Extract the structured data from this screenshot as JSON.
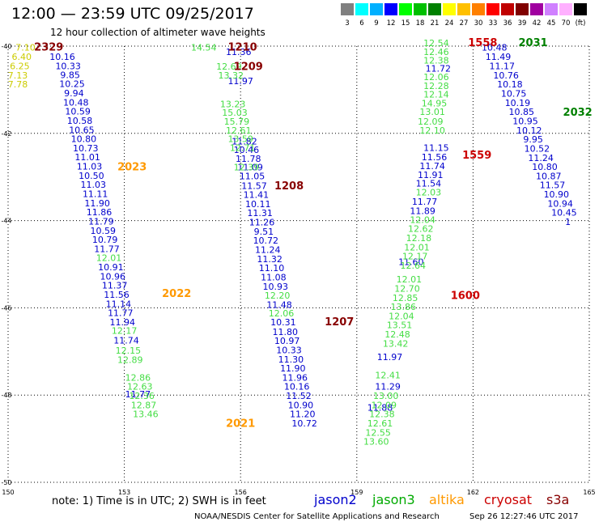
{
  "header": {
    "title": "12:00 — 23:59 UTC 09/25/2017",
    "subtitle": "12 hour collection of altimeter wave heights"
  },
  "colorscale": {
    "labels": [
      "3",
      "6",
      "9",
      "12",
      "15",
      "18",
      "21",
      "24",
      "27",
      "30",
      "33",
      "36",
      "39",
      "42",
      "45",
      "70",
      "(ft)"
    ],
    "colors": [
      "#808080",
      "#00ffff",
      "#00b0ff",
      "#0000ff",
      "#00ff00",
      "#00c000",
      "#008000",
      "#ffff00",
      "#ffc000",
      "#ff8000",
      "#ff0000",
      "#c00000",
      "#800000",
      "#a000a0",
      "#d080ff",
      "#ffb0ff",
      "#000000"
    ]
  },
  "footer": {
    "note": "note: 1) Time is in UTC; 2) SWH is in feet",
    "legend": [
      {
        "name": "jason2",
        "color": "#0000cc"
      },
      {
        "name": "jason3",
        "color": "#00aa00"
      },
      {
        "name": "altika",
        "color": "#ff9900"
      },
      {
        "name": "cryosat",
        "color": "#cc0000"
      },
      {
        "name": "s3a",
        "color": "#880000"
      }
    ],
    "credit": "NOAA/NESDIS Center for Satellite Applications and Research",
    "timestamp": "Sep 26 12:27:46 UTC 2017"
  },
  "chart_data": {
    "type": "scatter",
    "title": "12 hour collection of altimeter wave heights",
    "xlim": [
      150,
      165
    ],
    "ylim": [
      -50,
      -40
    ],
    "xticks": [
      "150",
      "153",
      "156",
      "159",
      "162",
      "165"
    ],
    "yticks": [
      "-40",
      "-42",
      "-44",
      "-46",
      "-48",
      "-50"
    ],
    "grid": true,
    "series": [
      {
        "name": "jason2",
        "color": "#0000cc",
        "points": [
          {
            "x": 151.4,
            "y": -40.32,
            "v": "10.16"
          },
          {
            "x": 151.55,
            "y": -40.53,
            "v": "10.33"
          },
          {
            "x": 151.6,
            "y": -40.73,
            "v": "9.85"
          },
          {
            "x": 151.65,
            "y": -40.94,
            "v": "10.25"
          },
          {
            "x": 151.7,
            "y": -41.15,
            "v": "9.94"
          },
          {
            "x": 151.75,
            "y": -41.36,
            "v": "10.48"
          },
          {
            "x": 151.8,
            "y": -41.57,
            "v": "10.59"
          },
          {
            "x": 151.85,
            "y": -41.78,
            "v": "10.58"
          },
          {
            "x": 151.9,
            "y": -41.99,
            "v": "10.65"
          },
          {
            "x": 151.95,
            "y": -42.2,
            "v": "10.80"
          },
          {
            "x": 152.0,
            "y": -42.41,
            "v": "10.73"
          },
          {
            "x": 152.05,
            "y": -42.62,
            "v": "11.01"
          },
          {
            "x": 152.1,
            "y": -42.83,
            "v": "11.03"
          },
          {
            "x": 152.15,
            "y": -43.04,
            "v": "10.50"
          },
          {
            "x": 152.2,
            "y": -43.25,
            "v": "11.03"
          },
          {
            "x": 152.25,
            "y": -43.46,
            "v": "11.11"
          },
          {
            "x": 152.3,
            "y": -43.67,
            "v": "11.90"
          },
          {
            "x": 152.35,
            "y": -43.88,
            "v": "11.86"
          },
          {
            "x": 152.4,
            "y": -44.09,
            "v": "11.79"
          },
          {
            "x": 152.45,
            "y": -44.3,
            "v": "10.59"
          },
          {
            "x": 152.5,
            "y": -44.51,
            "v": "10.79"
          },
          {
            "x": 152.55,
            "y": -44.72,
            "v": "11.77"
          },
          {
            "x": 152.65,
            "y": -45.14,
            "v": "10.91"
          },
          {
            "x": 152.7,
            "y": -45.35,
            "v": "10.96"
          },
          {
            "x": 152.75,
            "y": -45.56,
            "v": "11.37"
          },
          {
            "x": 152.8,
            "y": -45.77,
            "v": "11.56"
          },
          {
            "x": 152.85,
            "y": -45.98,
            "v": "11.14"
          },
          {
            "x": 152.9,
            "y": -46.19,
            "v": "11.77"
          },
          {
            "x": 152.95,
            "y": -46.4,
            "v": "11.94"
          },
          {
            "x": 153.05,
            "y": -46.82,
            "v": "11.74"
          },
          {
            "x": 153.35,
            "y": -48.05,
            "v": "11.77"
          },
          {
            "x": 155.95,
            "y": -40.2,
            "v": "11.36"
          },
          {
            "x": 156.0,
            "y": -40.87,
            "v": "11.97"
          },
          {
            "x": 156.1,
            "y": -42.25,
            "v": "11.82"
          },
          {
            "x": 156.15,
            "y": -42.45,
            "v": "10.46"
          },
          {
            "x": 156.2,
            "y": -42.65,
            "v": "11.78"
          },
          {
            "x": 156.25,
            "y": -42.85,
            "v": "11.09"
          },
          {
            "x": 156.3,
            "y": -43.05,
            "v": "11.05"
          },
          {
            "x": 156.35,
            "y": -43.27,
            "v": "11.57"
          },
          {
            "x": 156.4,
            "y": -43.48,
            "v": "11.41"
          },
          {
            "x": 156.45,
            "y": -43.69,
            "v": "10.11"
          },
          {
            "x": 156.5,
            "y": -43.9,
            "v": "11.31"
          },
          {
            "x": 156.55,
            "y": -44.11,
            "v": "11.26"
          },
          {
            "x": 156.6,
            "y": -44.32,
            "v": "9.51"
          },
          {
            "x": 156.65,
            "y": -44.53,
            "v": "10.72"
          },
          {
            "x": 156.7,
            "y": -44.74,
            "v": "11.24"
          },
          {
            "x": 156.75,
            "y": -44.95,
            "v": "11.32"
          },
          {
            "x": 156.8,
            "y": -45.16,
            "v": "11.10"
          },
          {
            "x": 156.85,
            "y": -45.37,
            "v": "11.08"
          },
          {
            "x": 156.9,
            "y": -45.58,
            "v": "10.93"
          },
          {
            "x": 157.0,
            "y": -46.0,
            "v": "11.48"
          },
          {
            "x": 157.1,
            "y": -46.4,
            "v": "10.31"
          },
          {
            "x": 157.15,
            "y": -46.62,
            "v": "11.80"
          },
          {
            "x": 157.2,
            "y": -46.83,
            "v": "10.97"
          },
          {
            "x": 157.25,
            "y": -47.04,
            "v": "10.33"
          },
          {
            "x": 157.3,
            "y": -47.25,
            "v": "11.30"
          },
          {
            "x": 157.35,
            "y": -47.46,
            "v": "11.90"
          },
          {
            "x": 157.4,
            "y": -47.67,
            "v": "11.96"
          },
          {
            "x": 157.45,
            "y": -47.88,
            "v": "10.16"
          },
          {
            "x": 157.5,
            "y": -48.09,
            "v": "11.52"
          },
          {
            "x": 157.55,
            "y": -48.3,
            "v": "10.90"
          },
          {
            "x": 157.6,
            "y": -48.51,
            "v": "11.20"
          },
          {
            "x": 157.65,
            "y": -48.72,
            "v": "10.72"
          },
          {
            "x": 161.1,
            "y": -40.58,
            "v": "11.72"
          },
          {
            "x": 161.05,
            "y": -42.4,
            "v": "11.15"
          },
          {
            "x": 161.0,
            "y": -42.62,
            "v": "11.56"
          },
          {
            "x": 160.95,
            "y": -42.82,
            "v": "11.74"
          },
          {
            "x": 160.9,
            "y": -43.02,
            "v": "11.91"
          },
          {
            "x": 160.85,
            "y": -43.22,
            "v": "11.54"
          },
          {
            "x": 160.75,
            "y": -43.64,
            "v": "11.77"
          },
          {
            "x": 160.7,
            "y": -43.85,
            "v": "11.89"
          },
          {
            "x": 160.4,
            "y": -45.02,
            "v": "11.60"
          },
          {
            "x": 159.85,
            "y": -47.2,
            "v": "11.97"
          },
          {
            "x": 159.8,
            "y": -47.88,
            "v": "11.29"
          },
          {
            "x": 159.6,
            "y": -48.36,
            "v": "11.88"
          },
          {
            "x": 162.55,
            "y": -40.1,
            "v": "10.48"
          },
          {
            "x": 162.65,
            "y": -40.32,
            "v": "11.49"
          },
          {
            "x": 162.75,
            "y": -40.53,
            "v": "11.17"
          },
          {
            "x": 162.85,
            "y": -40.74,
            "v": "10.76"
          },
          {
            "x": 162.95,
            "y": -40.95,
            "v": "10.18"
          },
          {
            "x": 163.05,
            "y": -41.16,
            "v": "10.75"
          },
          {
            "x": 163.15,
            "y": -41.37,
            "v": "10.19"
          },
          {
            "x": 163.25,
            "y": -41.58,
            "v": "10.85"
          },
          {
            "x": 163.35,
            "y": -41.79,
            "v": "10.95"
          },
          {
            "x": 163.45,
            "y": -42.0,
            "v": "10.12"
          },
          {
            "x": 163.55,
            "y": -42.21,
            "v": "9.95"
          },
          {
            "x": 163.65,
            "y": -42.42,
            "v": "10.52"
          },
          {
            "x": 163.75,
            "y": -42.63,
            "v": "11.24"
          },
          {
            "x": 163.85,
            "y": -42.84,
            "v": "10.80"
          },
          {
            "x": 163.95,
            "y": -43.05,
            "v": "10.87"
          },
          {
            "x": 164.05,
            "y": -43.26,
            "v": "11.57"
          },
          {
            "x": 164.15,
            "y": -43.47,
            "v": "10.90"
          },
          {
            "x": 164.25,
            "y": -43.68,
            "v": "10.94"
          },
          {
            "x": 164.35,
            "y": -43.89,
            "v": "10.45"
          },
          {
            "x": 164.45,
            "y": -44.1,
            "v": "1"
          }
        ]
      },
      {
        "name": "jason3",
        "color": "#44dd44",
        "points": [
          {
            "x": 155.05,
            "y": -40.1,
            "v": "14.54"
          },
          {
            "x": 155.7,
            "y": -40.54,
            "v": "12.69"
          },
          {
            "x": 155.75,
            "y": -40.74,
            "v": "13.32"
          },
          {
            "x": 155.8,
            "y": -41.4,
            "v": "13.23"
          },
          {
            "x": 155.85,
            "y": -41.6,
            "v": "15.03"
          },
          {
            "x": 155.9,
            "y": -41.8,
            "v": "15.79"
          },
          {
            "x": 155.95,
            "y": -42.0,
            "v": "12.61"
          },
          {
            "x": 156.0,
            "y": -42.2,
            "v": "13.59"
          },
          {
            "x": 156.05,
            "y": -42.4,
            "v": "12.71"
          },
          {
            "x": 156.15,
            "y": -42.85,
            "v": "12.39"
          },
          {
            "x": 152.6,
            "y": -44.93,
            "v": "12.01"
          },
          {
            "x": 153.0,
            "y": -46.6,
            "v": "12.17"
          },
          {
            "x": 153.1,
            "y": -47.05,
            "v": "12.15"
          },
          {
            "x": 153.15,
            "y": -47.26,
            "v": "12.89"
          },
          {
            "x": 153.35,
            "y": -47.67,
            "v": "12.86"
          },
          {
            "x": 153.4,
            "y": -47.88,
            "v": "12.63"
          },
          {
            "x": 153.45,
            "y": -48.09,
            "v": "12.36"
          },
          {
            "x": 153.5,
            "y": -48.3,
            "v": "12.87"
          },
          {
            "x": 153.55,
            "y": -48.51,
            "v": "13.46"
          },
          {
            "x": 156.95,
            "y": -45.79,
            "v": "12.20"
          },
          {
            "x": 157.05,
            "y": -46.2,
            "v": "12.06"
          },
          {
            "x": 161.05,
            "y": -40.0,
            "v": "12.54"
          },
          {
            "x": 161.05,
            "y": -40.2,
            "v": "12.46"
          },
          {
            "x": 161.05,
            "y": -40.4,
            "v": "12.38"
          },
          {
            "x": 161.05,
            "y": -40.78,
            "v": "12.06"
          },
          {
            "x": 161.05,
            "y": -40.98,
            "v": "12.28"
          },
          {
            "x": 161.05,
            "y": -41.18,
            "v": "12.14"
          },
          {
            "x": 161.0,
            "y": -41.38,
            "v": "14.95"
          },
          {
            "x": 160.95,
            "y": -41.58,
            "v": "13.01"
          },
          {
            "x": 160.9,
            "y": -41.8,
            "v": "12.09"
          },
          {
            "x": 160.95,
            "y": -42.0,
            "v": "12.10"
          },
          {
            "x": 160.85,
            "y": -43.42,
            "v": "12.03"
          },
          {
            "x": 160.7,
            "y": -44.05,
            "v": "12.04"
          },
          {
            "x": 160.65,
            "y": -44.26,
            "v": "12.62"
          },
          {
            "x": 160.6,
            "y": -44.47,
            "v": "12.18"
          },
          {
            "x": 160.55,
            "y": -44.68,
            "v": "12.01"
          },
          {
            "x": 160.5,
            "y": -44.89,
            "v": "12.17"
          },
          {
            "x": 160.45,
            "y": -45.1,
            "v": "12.64"
          },
          {
            "x": 160.35,
            "y": -45.42,
            "v": "12.01"
          },
          {
            "x": 160.3,
            "y": -45.63,
            "v": "12.70"
          },
          {
            "x": 160.25,
            "y": -45.84,
            "v": "12.85"
          },
          {
            "x": 160.2,
            "y": -46.05,
            "v": "13.86"
          },
          {
            "x": 160.15,
            "y": -46.26,
            "v": "12.04"
          },
          {
            "x": 160.1,
            "y": -46.47,
            "v": "13.51"
          },
          {
            "x": 160.05,
            "y": -46.68,
            "v": "12.48"
          },
          {
            "x": 160.0,
            "y": -46.89,
            "v": "13.42"
          },
          {
            "x": 159.8,
            "y": -47.62,
            "v": "12.41"
          },
          {
            "x": 159.75,
            "y": -48.09,
            "v": "13.00"
          },
          {
            "x": 159.7,
            "y": -48.3,
            "v": "12.09"
          },
          {
            "x": 159.65,
            "y": -48.51,
            "v": "12.38"
          },
          {
            "x": 159.6,
            "y": -48.72,
            "v": "12.61"
          },
          {
            "x": 159.55,
            "y": -48.93,
            "v": "12.55"
          },
          {
            "x": 159.5,
            "y": -49.14,
            "v": "13.60"
          }
        ]
      },
      {
        "name": "altika",
        "color": "#cccc00",
        "points": [
          {
            "x": 150.45,
            "y": -40.1,
            "v": "7.10"
          },
          {
            "x": 150.35,
            "y": -40.32,
            "v": "6.40"
          },
          {
            "x": 150.3,
            "y": -40.53,
            "v": "6.25"
          },
          {
            "x": 150.25,
            "y": -40.74,
            "v": "7.13"
          },
          {
            "x": 150.25,
            "y": -40.95,
            "v": "7.78"
          }
        ]
      }
    ],
    "tracks": [
      {
        "label": "2329",
        "color": "#880000",
        "x": 151.05,
        "y": -40.1
      },
      {
        "label": "1210",
        "color": "#880000",
        "x": 156.05,
        "y": -40.1
      },
      {
        "label": "1209",
        "color": "#880000",
        "x": 156.2,
        "y": -40.55
      },
      {
        "label": "2023",
        "color": "#ff9900",
        "x": 153.2,
        "y": -42.85
      },
      {
        "label": "1208",
        "color": "#880000",
        "x": 157.25,
        "y": -43.28
      },
      {
        "label": "2022",
        "color": "#ff9900",
        "x": 154.35,
        "y": -45.75
      },
      {
        "label": "1207",
        "color": "#880000",
        "x": 158.55,
        "y": -46.4
      },
      {
        "label": "2021",
        "color": "#ff9900",
        "x": 156.0,
        "y": -48.73
      },
      {
        "label": "1558",
        "color": "#cc0000",
        "x": 162.25,
        "y": -40.0
      },
      {
        "label": "2031",
        "color": "#008000",
        "x": 163.55,
        "y": -40.0
      },
      {
        "label": "2032",
        "color": "#008000",
        "x": 164.7,
        "y": -41.6
      },
      {
        "label": "1559",
        "color": "#cc0000",
        "x": 162.1,
        "y": -42.58
      },
      {
        "label": "1600",
        "color": "#cc0000",
        "x": 161.8,
        "y": -45.8
      }
    ]
  }
}
